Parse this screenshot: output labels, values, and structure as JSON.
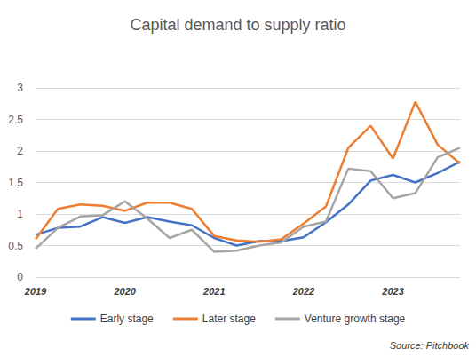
{
  "chart_data": {
    "type": "line",
    "title": "Capital demand to supply ratio",
    "categories": [
      "2019",
      null,
      null,
      null,
      "2020",
      null,
      null,
      null,
      "2021",
      null,
      null,
      null,
      "2022",
      null,
      null,
      null,
      "2023",
      null,
      null,
      null
    ],
    "series": [
      {
        "name": "Early stage",
        "color": "#4472c4",
        "values": [
          0.67,
          0.78,
          0.8,
          0.95,
          0.86,
          0.95,
          0.88,
          0.82,
          0.62,
          0.5,
          0.57,
          0.57,
          0.63,
          0.87,
          1.15,
          1.53,
          1.62,
          1.5,
          1.65,
          1.83
        ]
      },
      {
        "name": "Later stage",
        "color": "#ed7d31",
        "values": [
          0.6,
          1.08,
          1.15,
          1.13,
          1.05,
          1.18,
          1.18,
          1.08,
          0.65,
          0.58,
          0.56,
          0.6,
          0.85,
          1.12,
          2.05,
          2.4,
          1.88,
          2.78,
          2.1,
          1.8
        ]
      },
      {
        "name": "Venture growth stage",
        "color": "#a5a5a5",
        "values": [
          0.45,
          0.78,
          0.96,
          0.98,
          1.2,
          0.93,
          0.62,
          0.75,
          0.4,
          0.42,
          0.5,
          0.55,
          0.8,
          0.88,
          1.72,
          1.68,
          1.25,
          1.33,
          1.9,
          2.05
        ]
      }
    ],
    "ylim": [
      0,
      3
    ],
    "yticks": [
      0,
      0.5,
      1,
      1.5,
      2,
      2.5,
      3
    ],
    "grid": true,
    "legend": "bottom",
    "annotations": [
      "Source: Pitchbook"
    ]
  }
}
